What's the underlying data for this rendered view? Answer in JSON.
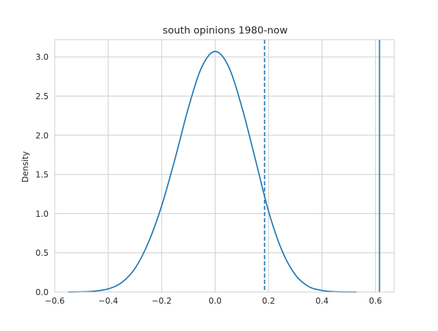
{
  "chart_data": {
    "type": "line",
    "title": "south opinions 1980-now",
    "xlabel": "",
    "ylabel": "Density",
    "xlim": [
      -0.6,
      0.67
    ],
    "ylim": [
      0,
      3.22
    ],
    "xticks": [
      -0.6,
      -0.4,
      -0.2,
      0.0,
      0.2,
      0.4,
      0.6
    ],
    "xtick_labels": [
      "−0.6",
      "−0.4",
      "−0.2",
      "0.0",
      "0.2",
      "0.4",
      "0.6"
    ],
    "yticks": [
      0.0,
      0.5,
      1.0,
      1.5,
      2.0,
      2.5,
      3.0
    ],
    "ytick_labels": [
      "0.0",
      "0.5",
      "1.0",
      "1.5",
      "2.0",
      "2.5",
      "3.0"
    ],
    "grid": true,
    "legend": "none",
    "line_color": "#1f77b4",
    "grid_color": "#cccccc",
    "series": [
      {
        "x": [
          -0.55,
          -0.5,
          -0.45,
          -0.4,
          -0.35,
          -0.3,
          -0.25,
          -0.2,
          -0.15,
          -0.1,
          -0.05,
          0.0,
          0.05,
          0.1,
          0.15,
          0.2,
          0.25,
          0.3,
          0.35,
          0.4,
          0.45,
          0.5,
          0.53
        ],
        "y": [
          0.0,
          0.003,
          0.012,
          0.04,
          0.12,
          0.3,
          0.63,
          1.1,
          1.7,
          2.35,
          2.87,
          3.07,
          2.88,
          2.36,
          1.7,
          1.03,
          0.53,
          0.22,
          0.07,
          0.02,
          0.004,
          0.001,
          0.0
        ]
      }
    ],
    "vlines": [
      {
        "x": 0.185,
        "style": "dashed"
      },
      {
        "x": 0.615,
        "style": "solid"
      }
    ]
  }
}
